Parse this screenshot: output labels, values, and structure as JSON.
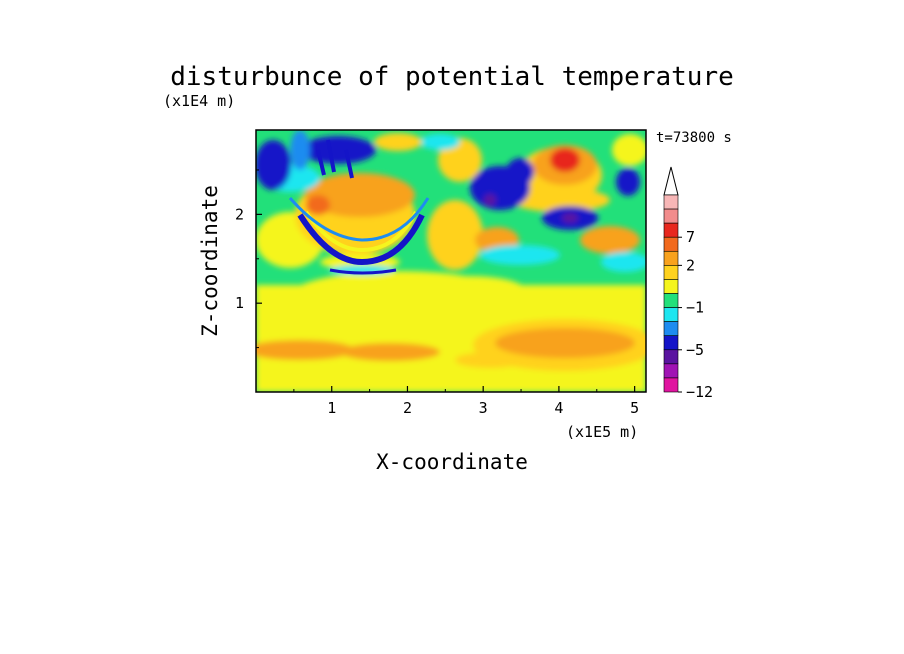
{
  "chart_data": {
    "type": "heatmap",
    "title": "disturbunce of potential temperature",
    "xlabel": "X-coordinate",
    "ylabel": "Z-coordinate",
    "x_unit": "(x1E5 m)",
    "y_unit": "(x1E4 m)",
    "time_label": "t=73800 s",
    "xlim": [
      0,
      5.15
    ],
    "ylim": [
      0,
      2.95
    ],
    "x_ticks": [
      1,
      2,
      3,
      4,
      5
    ],
    "y_ticks": [
      1,
      2
    ],
    "colorbar": {
      "tick_labels": [
        "7",
        "2",
        "-1",
        "-5",
        "-12"
      ],
      "tick_values": [
        7,
        2,
        -1,
        -5,
        -12
      ],
      "levels": [
        {
          "label": "",
          "color": "#f7b6b6"
        },
        {
          "label": "",
          "color": "#f28c8c"
        },
        {
          "label": "7",
          "color": "#e8281e"
        },
        {
          "label": "",
          "color": "#f26a1e"
        },
        {
          "label": "2",
          "color": "#f8a21e"
        },
        {
          "label": "",
          "color": "#ffd21e"
        },
        {
          "label": "",
          "color": "#f5f51e"
        },
        {
          "label": "-1",
          "color": "#22e07a"
        },
        {
          "label": "",
          "color": "#1ee6f0"
        },
        {
          "label": "",
          "color": "#1e8cf0"
        },
        {
          "label": "-5",
          "color": "#1414c8"
        },
        {
          "label": "",
          "color": "#5a14a0"
        },
        {
          "label": "",
          "color": "#a014b4"
        },
        {
          "label": "-12",
          "color": "#e014a0"
        }
      ],
      "extend_top_color": "#ffffff"
    },
    "grid": false,
    "legend": "colorbar-right"
  }
}
